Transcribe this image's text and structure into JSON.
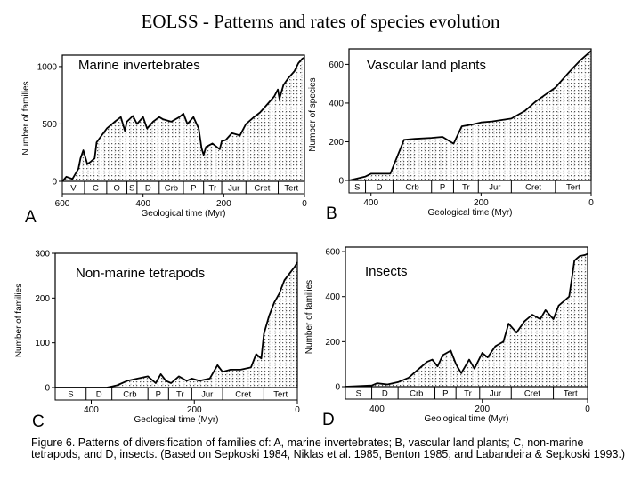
{
  "title": "EOLSS - Patterns and rates of species evolution",
  "caption": "Figure 6. Patterns of diversification of families of: A, marine invertebrates; B, vascular land plants; C, non-marine tetrapods, and D, insects. (Based on Sepkoski 1984, Niklas et al. 1985, Benton 1985, and Labandeira & Sepkoski 1993.)",
  "chart_data": [
    {
      "type": "area",
      "panel_letter": "A",
      "title": "Marine invertebrates",
      "xlabel": "Geological time (Myr)",
      "ylabel": "Number of families",
      "xlim": [
        600,
        0
      ],
      "ylim": [
        0,
        1100
      ],
      "xticks": [
        600,
        400,
        200,
        0
      ],
      "yticks": [
        0,
        500,
        1000
      ],
      "periods": [
        {
          "label": "V",
          "start": 600,
          "end": 545
        },
        {
          "label": "C",
          "start": 545,
          "end": 490
        },
        {
          "label": "O",
          "start": 490,
          "end": 440
        },
        {
          "label": "S",
          "start": 440,
          "end": 415
        },
        {
          "label": "D",
          "start": 415,
          "end": 360
        },
        {
          "label": "Crb",
          "start": 360,
          "end": 300
        },
        {
          "label": "P",
          "start": 300,
          "end": 250
        },
        {
          "label": "Tr",
          "start": 250,
          "end": 205
        },
        {
          "label": "Jur",
          "start": 205,
          "end": 145
        },
        {
          "label": "Cret",
          "start": 145,
          "end": 65
        },
        {
          "label": "Tert",
          "start": 65,
          "end": 0
        }
      ],
      "x": [
        600,
        590,
        575,
        560,
        555,
        548,
        538,
        530,
        520,
        515,
        490,
        470,
        455,
        445,
        440,
        425,
        415,
        400,
        390,
        375,
        360,
        350,
        330,
        310,
        300,
        290,
        275,
        262,
        255,
        250,
        244,
        228,
        210,
        205,
        195,
        180,
        160,
        145,
        125,
        110,
        100,
        85,
        75,
        66,
        62,
        52,
        40,
        25,
        15,
        5,
        0
      ],
      "y": [
        0,
        40,
        20,
        110,
        200,
        270,
        150,
        170,
        200,
        340,
        460,
        520,
        560,
        440,
        520,
        570,
        500,
        560,
        460,
        520,
        560,
        540,
        520,
        560,
        590,
        500,
        560,
        460,
        290,
        230,
        300,
        330,
        280,
        350,
        360,
        420,
        400,
        500,
        560,
        600,
        640,
        700,
        740,
        800,
        720,
        840,
        900,
        960,
        1030,
        1070,
        1080
      ]
    },
    {
      "type": "area",
      "panel_letter": "B",
      "title": "Vascular land plants",
      "xlabel": "Geological time (Myr)",
      "ylabel": "Number of species",
      "xlim": [
        440,
        0
      ],
      "ylim": [
        0,
        680
      ],
      "xticks": [
        400,
        200,
        0
      ],
      "yticks": [
        0,
        200,
        400,
        600
      ],
      "periods": [
        {
          "label": "S",
          "start": 440,
          "end": 410
        },
        {
          "label": "D",
          "start": 410,
          "end": 360
        },
        {
          "label": "Crb",
          "start": 360,
          "end": 290
        },
        {
          "label": "P",
          "start": 290,
          "end": 250
        },
        {
          "label": "Tr",
          "start": 250,
          "end": 205
        },
        {
          "label": "Jur",
          "start": 205,
          "end": 145
        },
        {
          "label": "Cret",
          "start": 145,
          "end": 65
        },
        {
          "label": "Tert",
          "start": 65,
          "end": 0
        }
      ],
      "x": [
        440,
        410,
        400,
        380,
        370,
        365,
        340,
        320,
        290,
        270,
        250,
        235,
        215,
        200,
        180,
        145,
        120,
        100,
        65,
        40,
        20,
        0
      ],
      "y": [
        0,
        20,
        35,
        35,
        35,
        35,
        210,
        215,
        220,
        225,
        190,
        280,
        290,
        300,
        305,
        320,
        360,
        410,
        480,
        560,
        620,
        670
      ]
    },
    {
      "type": "area",
      "panel_letter": "C",
      "title": "Non-marine tetrapods",
      "xlabel": "Geological time (Myr)",
      "ylabel": "Number of families",
      "xlim": [
        470,
        0
      ],
      "ylim": [
        0,
        300
      ],
      "xticks": [
        400,
        200,
        0
      ],
      "yticks": [
        0,
        100,
        200,
        300
      ],
      "periods": [
        {
          "label": "S",
          "start": 470,
          "end": 410
        },
        {
          "label": "D",
          "start": 410,
          "end": 360
        },
        {
          "label": "Crb",
          "start": 360,
          "end": 290
        },
        {
          "label": "P",
          "start": 290,
          "end": 250
        },
        {
          "label": "Tr",
          "start": 250,
          "end": 205
        },
        {
          "label": "Jur",
          "start": 205,
          "end": 145
        },
        {
          "label": "Cret",
          "start": 145,
          "end": 65
        },
        {
          "label": "Tert",
          "start": 65,
          "end": 0
        }
      ],
      "x": [
        470,
        370,
        350,
        330,
        310,
        290,
        275,
        265,
        255,
        245,
        230,
        215,
        205,
        190,
        170,
        155,
        145,
        130,
        110,
        90,
        80,
        70,
        65,
        55,
        45,
        35,
        25,
        15,
        5,
        0
      ],
      "y": [
        0,
        0,
        5,
        15,
        20,
        25,
        10,
        30,
        15,
        10,
        25,
        15,
        20,
        15,
        20,
        50,
        35,
        40,
        40,
        45,
        75,
        65,
        120,
        160,
        190,
        210,
        240,
        255,
        270,
        280
      ]
    },
    {
      "type": "area",
      "panel_letter": "D",
      "title": "Insects",
      "xlabel": "Geological time (Myr)",
      "ylabel": "Number of families",
      "xlim": [
        460,
        0
      ],
      "ylim": [
        0,
        620
      ],
      "xticks": [
        400,
        200,
        0
      ],
      "yticks": [
        0,
        200,
        400,
        600
      ],
      "periods": [
        {
          "label": "S",
          "start": 460,
          "end": 410
        },
        {
          "label": "D",
          "start": 410,
          "end": 360
        },
        {
          "label": "Crb",
          "start": 360,
          "end": 290
        },
        {
          "label": "P",
          "start": 290,
          "end": 250
        },
        {
          "label": "Tr",
          "start": 250,
          "end": 205
        },
        {
          "label": "Jur",
          "start": 205,
          "end": 145
        },
        {
          "label": "Cret",
          "start": 145,
          "end": 65
        },
        {
          "label": "Tert",
          "start": 65,
          "end": 0
        }
      ],
      "x": [
        460,
        410,
        400,
        380,
        360,
        340,
        320,
        305,
        295,
        285,
        275,
        260,
        250,
        240,
        225,
        215,
        200,
        190,
        175,
        160,
        150,
        135,
        120,
        105,
        90,
        80,
        65,
        55,
        45,
        35,
        25,
        15,
        5,
        0
      ],
      "y": [
        0,
        5,
        15,
        10,
        20,
        40,
        80,
        110,
        120,
        90,
        140,
        160,
        100,
        60,
        120,
        80,
        150,
        130,
        180,
        200,
        280,
        240,
        290,
        320,
        300,
        340,
        300,
        360,
        380,
        400,
        560,
        580,
        585,
        590
      ]
    }
  ]
}
